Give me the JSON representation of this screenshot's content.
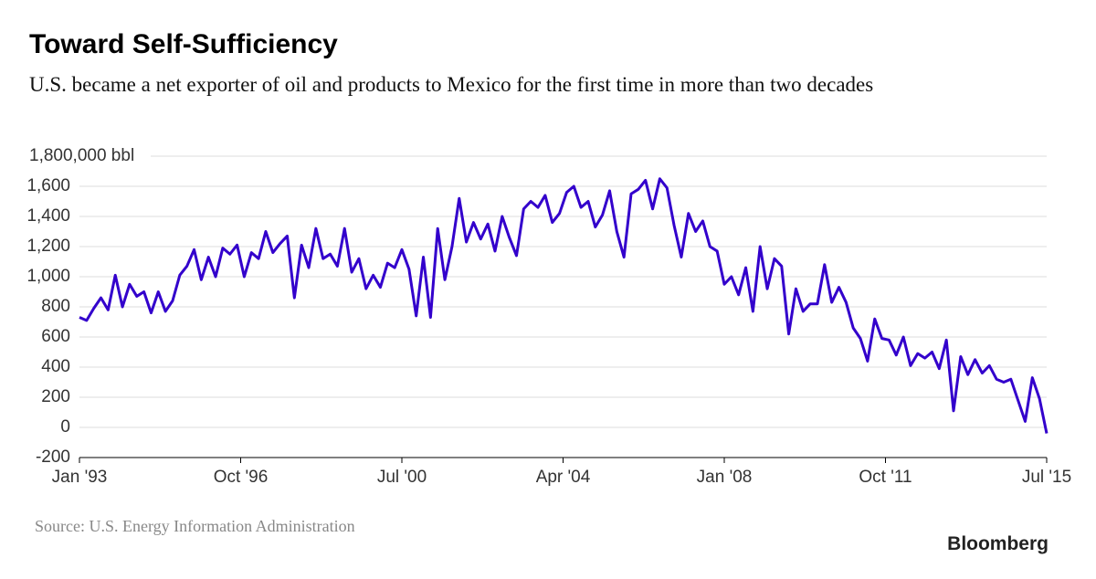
{
  "chart_data": {
    "type": "line",
    "title": "Toward Self-Sufficiency",
    "subtitle": "U.S. became a net exporter of oil and products to Mexico for the first time in more than two decades",
    "source": "Source: U.S. Energy Information Administration",
    "brand": "Bloomberg",
    "xlim": [
      "1993-01",
      "2015-07"
    ],
    "xticks": [
      {
        "value": "1993-01",
        "label": "Jan '93"
      },
      {
        "value": "1996-10",
        "label": "Oct '96"
      },
      {
        "value": "2000-07",
        "label": "Jul '00"
      },
      {
        "value": "2004-04",
        "label": "Apr '04"
      },
      {
        "value": "2008-01",
        "label": "Jan '08"
      },
      {
        "value": "2011-10",
        "label": "Oct '11"
      },
      {
        "value": "2015-07",
        "label": "Jul '15"
      }
    ],
    "ylim": [
      -200,
      1800
    ],
    "yticks": [
      -200,
      0,
      200,
      400,
      600,
      800,
      {
        "value": 1000,
        "label": "1,000"
      },
      {
        "value": 1200,
        "label": "1,200"
      },
      {
        "value": 1400,
        "label": "1,400"
      },
      {
        "value": 1600,
        "label": "1,600"
      },
      {
        "value": 1800,
        "label": "1,800,000 bbl"
      }
    ],
    "grid": true,
    "x": [
      "1993-01",
      "1993-03",
      "1993-05",
      "1993-07",
      "1993-09",
      "1993-11",
      "1994-01",
      "1994-03",
      "1994-05",
      "1994-07",
      "1994-09",
      "1994-11",
      "1995-01",
      "1995-03",
      "1995-05",
      "1995-07",
      "1995-09",
      "1995-11",
      "1996-01",
      "1996-03",
      "1996-05",
      "1996-07",
      "1996-09",
      "1996-11",
      "1997-01",
      "1997-03",
      "1997-05",
      "1997-07",
      "1997-09",
      "1997-11",
      "1998-01",
      "1998-03",
      "1998-05",
      "1998-07",
      "1998-09",
      "1998-11",
      "1999-01",
      "1999-03",
      "1999-05",
      "1999-07",
      "1999-09",
      "1999-11",
      "2000-01",
      "2000-03",
      "2000-05",
      "2000-07",
      "2000-09",
      "2000-11",
      "2001-01",
      "2001-03",
      "2001-05",
      "2001-07",
      "2001-09",
      "2001-11",
      "2002-01",
      "2002-03",
      "2002-05",
      "2002-07",
      "2002-09",
      "2002-11",
      "2003-01",
      "2003-03",
      "2003-05",
      "2003-07",
      "2003-09",
      "2003-11",
      "2004-01",
      "2004-03",
      "2004-05",
      "2004-07",
      "2004-09",
      "2004-11",
      "2005-01",
      "2005-03",
      "2005-05",
      "2005-07",
      "2005-09",
      "2005-11",
      "2006-01",
      "2006-03",
      "2006-05",
      "2006-07",
      "2006-09",
      "2006-11",
      "2007-01",
      "2007-03",
      "2007-05",
      "2007-07",
      "2007-09",
      "2007-11",
      "2008-01",
      "2008-03",
      "2008-05",
      "2008-07",
      "2008-09",
      "2008-11",
      "2009-01",
      "2009-03",
      "2009-05",
      "2009-07",
      "2009-09",
      "2009-11",
      "2010-01",
      "2010-03",
      "2010-05",
      "2010-07",
      "2010-09",
      "2010-11",
      "2011-01",
      "2011-03",
      "2011-05",
      "2011-07",
      "2011-09",
      "2011-11",
      "2012-01",
      "2012-03",
      "2012-05",
      "2012-07",
      "2012-09",
      "2012-11",
      "2013-01",
      "2013-03",
      "2013-05",
      "2013-07",
      "2013-09",
      "2013-11",
      "2014-01",
      "2014-03",
      "2014-05",
      "2014-07",
      "2014-09",
      "2014-11",
      "2015-01",
      "2015-03",
      "2015-05",
      "2015-07"
    ],
    "series": [
      {
        "color": "#3300cc",
        "values": [
          730,
          710,
          790,
          860,
          780,
          1010,
          800,
          950,
          870,
          900,
          760,
          900,
          770,
          840,
          1010,
          1070,
          1180,
          980,
          1130,
          1000,
          1190,
          1150,
          1210,
          1000,
          1160,
          1120,
          1300,
          1160,
          1220,
          1270,
          860,
          1210,
          1060,
          1320,
          1120,
          1150,
          1070,
          1320,
          1030,
          1120,
          920,
          1010,
          930,
          1090,
          1060,
          1180,
          1050,
          740,
          1130,
          730,
          1320,
          980,
          1200,
          1520,
          1230,
          1360,
          1250,
          1350,
          1170,
          1400,
          1260,
          1140,
          1450,
          1500,
          1460,
          1540,
          1360,
          1420,
          1560,
          1600,
          1460,
          1500,
          1330,
          1410,
          1570,
          1300,
          1130,
          1550,
          1580,
          1640,
          1450,
          1650,
          1590,
          1340,
          1130,
          1420,
          1300,
          1370,
          1200,
          1170,
          950,
          1000,
          880,
          1060,
          770,
          1200,
          920,
          1120,
          1070,
          620,
          920,
          770,
          820,
          820,
          1080,
          830,
          930,
          830,
          660,
          590,
          440,
          720,
          590,
          580,
          480,
          600,
          410,
          490,
          460,
          500,
          390,
          580,
          110,
          470,
          350,
          450,
          360,
          410,
          320,
          300,
          320,
          180,
          40,
          330,
          190,
          -40
        ]
      }
    ]
  }
}
